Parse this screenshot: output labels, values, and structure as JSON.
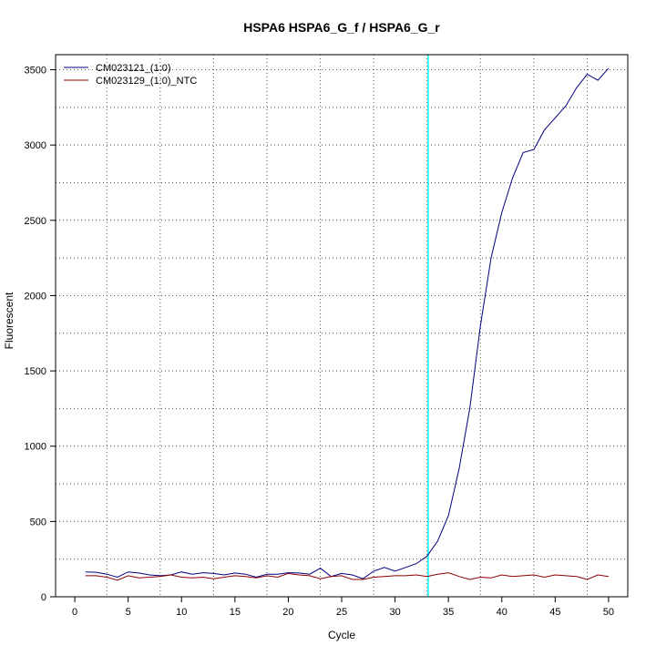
{
  "chart_data": {
    "type": "line",
    "title": "HSPA6  HSPA6_G_f / HSPA6_G_r",
    "xlabel": "Cycle",
    "ylabel": "Fluorescent",
    "xlim": [
      -1.8,
      51.8
    ],
    "ylim": [
      0,
      3600
    ],
    "xticks": [
      0,
      5,
      10,
      15,
      20,
      25,
      30,
      35,
      40,
      45,
      50
    ],
    "yticks": [
      0,
      500,
      1000,
      1500,
      2000,
      2500,
      3000,
      3500
    ],
    "grid": true,
    "threshold_cycle": 33.1,
    "threshold_color": "#00ffff",
    "baseline_color": "#cc0000",
    "legend_position": "top-left",
    "x": [
      1,
      2,
      3,
      4,
      5,
      6,
      7,
      8,
      9,
      10,
      11,
      12,
      13,
      14,
      15,
      16,
      17,
      18,
      19,
      20,
      21,
      22,
      23,
      24,
      25,
      26,
      27,
      28,
      29,
      30,
      31,
      32,
      33,
      34,
      35,
      36,
      37,
      38,
      39,
      40,
      41,
      42,
      43,
      44,
      45,
      46,
      47,
      48,
      49,
      50
    ],
    "series": [
      {
        "name": "CM023121_(1:0)",
        "color": "#000080",
        "values": [
          165,
          163,
          150,
          130,
          165,
          158,
          145,
          140,
          145,
          165,
          150,
          160,
          155,
          145,
          158,
          150,
          130,
          150,
          150,
          160,
          158,
          150,
          190,
          135,
          155,
          145,
          120,
          170,
          195,
          170,
          195,
          220,
          270,
          370,
          540,
          850,
          1250,
          1800,
          2250,
          2550,
          2780,
          2950,
          2970,
          3100,
          3180,
          3260,
          3380,
          3470,
          3430,
          3510
        ]
      },
      {
        "name": "CM023129_(1:0)_NTC",
        "color": "#8b0000",
        "values": [
          140,
          140,
          130,
          110,
          140,
          125,
          130,
          135,
          145,
          130,
          125,
          130,
          120,
          130,
          140,
          135,
          125,
          140,
          130,
          155,
          145,
          140,
          120,
          135,
          140,
          115,
          115,
          130,
          135,
          140,
          140,
          145,
          135,
          150,
          160,
          135,
          115,
          130,
          125,
          145,
          135,
          140,
          145,
          130,
          145,
          140,
          135,
          115,
          145,
          135
        ]
      }
    ]
  }
}
